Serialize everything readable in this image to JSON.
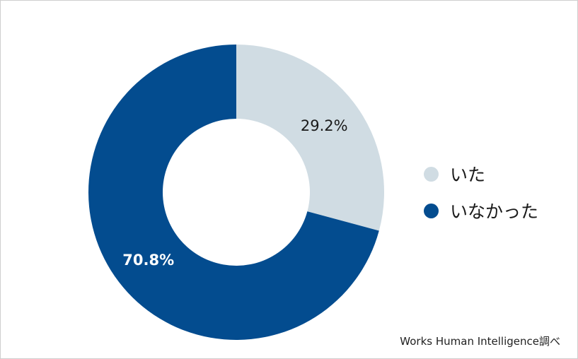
{
  "chart_data": {
    "type": "pie",
    "donut": true,
    "title": "",
    "categories": [
      "いた",
      "いなかった"
    ],
    "values": [
      29.2,
      70.8
    ],
    "value_labels": [
      "29.2%",
      "70.8%"
    ],
    "colors": [
      "#d0dce3",
      "#034c8f"
    ],
    "label_colors": [
      "#1a1a1a",
      "#ffffff"
    ],
    "legend_position": "right",
    "start_angle": "top, clockwise"
  },
  "legend": {
    "items": [
      {
        "label": "いた",
        "color": "#d0dce3"
      },
      {
        "label": "いなかった",
        "color": "#034c8f"
      }
    ]
  },
  "source_note": "Works Human Intelligence調べ"
}
